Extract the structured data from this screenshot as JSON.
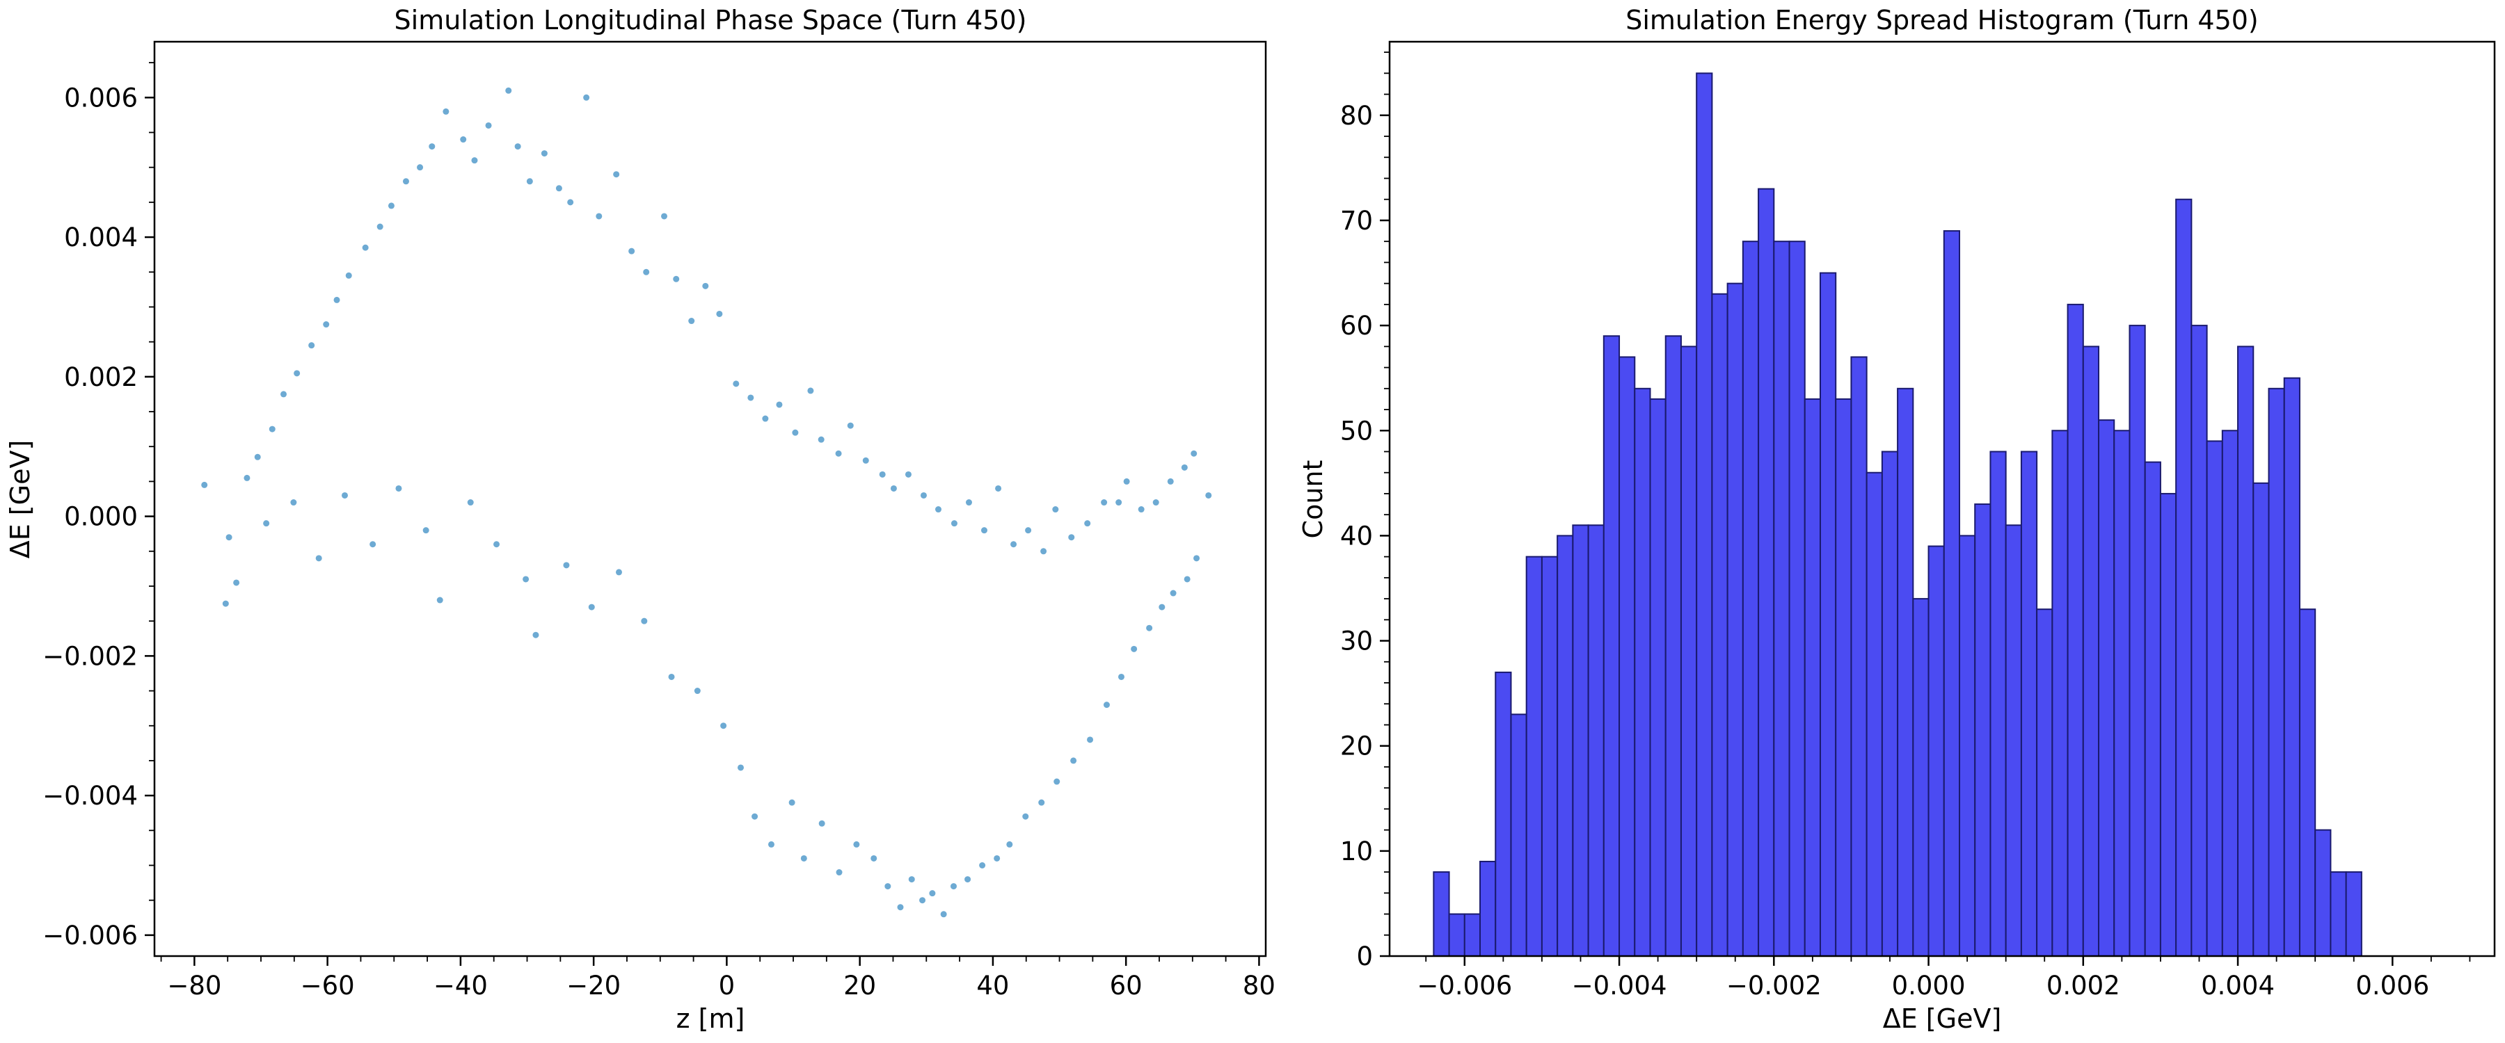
{
  "chart_data": [
    {
      "type": "scatter",
      "title": "Simulation Longitudinal Phase Space (Turn 450)",
      "xlabel": "z [m]",
      "ylabel": "ΔE [GeV]",
      "xlim": [
        -86,
        81
      ],
      "ylim": [
        -0.0063,
        0.0068
      ],
      "xticks": [
        -80,
        -60,
        -40,
        -20,
        0,
        20,
        40,
        60,
        80
      ],
      "xtick_labels": [
        "−80",
        "−60",
        "−40",
        "−20",
        "0",
        "20",
        "40",
        "60",
        "80"
      ],
      "yticks": [
        -0.006,
        -0.004,
        -0.002,
        0.0,
        0.002,
        0.004,
        0.006
      ],
      "ytick_labels": [
        "−0.006",
        "−0.004",
        "−0.002",
        "0.000",
        "0.002",
        "0.004",
        "0.006"
      ],
      "marker_color": "#3c8dc4",
      "grid": false,
      "points": [
        [
          -78.5,
          0.00045
        ],
        [
          -75.3,
          -0.00125
        ],
        [
          -73.7,
          -0.00095
        ],
        [
          -72.1,
          0.00055
        ],
        [
          -70.5,
          0.00085
        ],
        [
          -68.3,
          0.00125
        ],
        [
          -66.6,
          0.00175
        ],
        [
          -64.6,
          0.00205
        ],
        [
          -62.4,
          0.00245
        ],
        [
          -60.2,
          0.00275
        ],
        [
          -58.6,
          0.0031
        ],
        [
          -56.8,
          0.00345
        ],
        [
          -54.3,
          0.00385
        ],
        [
          -52.1,
          0.00415
        ],
        [
          -50.4,
          0.00445
        ],
        [
          -48.2,
          0.0048
        ],
        [
          -46.1,
          0.005
        ],
        [
          -44.3,
          0.0053
        ],
        [
          -42.2,
          0.0058
        ],
        [
          -39.6,
          0.0054
        ],
        [
          -37.9,
          0.0051
        ],
        [
          -35.8,
          0.0056
        ],
        [
          -32.8,
          0.0061
        ],
        [
          -31.4,
          0.0053
        ],
        [
          -29.6,
          0.0048
        ],
        [
          -27.4,
          0.0052
        ],
        [
          -25.2,
          0.0047
        ],
        [
          -23.5,
          0.0045
        ],
        [
          -21.1,
          0.006
        ],
        [
          -19.2,
          0.0043
        ],
        [
          -16.6,
          0.0049
        ],
        [
          -14.3,
          0.0038
        ],
        [
          -12.1,
          0.0035
        ],
        [
          -9.4,
          0.0043
        ],
        [
          -7.6,
          0.0034
        ],
        [
          -5.3,
          0.0028
        ],
        [
          -3.2,
          0.0033
        ],
        [
          -1.1,
          0.0029
        ],
        [
          1.4,
          0.0019
        ],
        [
          3.6,
          0.0017
        ],
        [
          5.8,
          0.0014
        ],
        [
          7.9,
          0.0016
        ],
        [
          10.3,
          0.0012
        ],
        [
          12.6,
          0.0018
        ],
        [
          14.2,
          0.0011
        ],
        [
          16.8,
          0.0009
        ],
        [
          18.6,
          0.0013
        ],
        [
          20.9,
          0.0008
        ],
        [
          23.4,
          0.0006
        ],
        [
          25.1,
          0.0004
        ],
        [
          27.3,
          0.0006
        ],
        [
          29.6,
          0.0003
        ],
        [
          31.8,
          0.0001
        ],
        [
          34.2,
          -0.0001
        ],
        [
          36.4,
          0.0002
        ],
        [
          38.7,
          -0.0002
        ],
        [
          40.8,
          0.0004
        ],
        [
          43.1,
          -0.0004
        ],
        [
          45.3,
          -0.0002
        ],
        [
          47.6,
          -0.0005
        ],
        [
          49.4,
          0.0001
        ],
        [
          51.8,
          -0.0003
        ],
        [
          54.2,
          -0.0001
        ],
        [
          56.7,
          0.0002
        ],
        [
          58.9,
          0.0002
        ],
        [
          60.1,
          0.0005
        ],
        [
          62.3,
          0.0001
        ],
        [
          64.5,
          0.0002
        ],
        [
          66.7,
          0.0005
        ],
        [
          68.8,
          0.0007
        ],
        [
          70.2,
          0.0009
        ],
        [
          72.4,
          0.0003
        ],
        [
          -74.8,
          -0.0003
        ],
        [
          -69.2,
          -0.0001
        ],
        [
          -65.1,
          0.0002
        ],
        [
          -61.3,
          -0.0006
        ],
        [
          -57.4,
          0.0003
        ],
        [
          -53.2,
          -0.0004
        ],
        [
          -49.3,
          0.0004
        ],
        [
          -45.2,
          -0.0002
        ],
        [
          -43.1,
          -0.0012
        ],
        [
          -38.5,
          0.0002
        ],
        [
          -34.6,
          -0.0004
        ],
        [
          -30.2,
          -0.0009
        ],
        [
          -28.7,
          -0.0017
        ],
        [
          -24.1,
          -0.0007
        ],
        [
          -20.3,
          -0.0013
        ],
        [
          -16.2,
          -0.0008
        ],
        [
          -12.4,
          -0.0015
        ],
        [
          -8.3,
          -0.0023
        ],
        [
          -4.4,
          -0.0025
        ],
        [
          -0.5,
          -0.003
        ],
        [
          2.1,
          -0.0036
        ],
        [
          4.2,
          -0.0043
        ],
        [
          6.7,
          -0.0047
        ],
        [
          9.8,
          -0.0041
        ],
        [
          11.6,
          -0.0049
        ],
        [
          14.3,
          -0.0044
        ],
        [
          16.9,
          -0.0051
        ],
        [
          19.5,
          -0.0047
        ],
        [
          22.1,
          -0.0049
        ],
        [
          24.2,
          -0.0053
        ],
        [
          26.1,
          -0.0056
        ],
        [
          27.8,
          -0.0052
        ],
        [
          29.4,
          -0.0055
        ],
        [
          30.9,
          -0.0054
        ],
        [
          32.6,
          -0.0057
        ],
        [
          34.1,
          -0.0053
        ],
        [
          36.2,
          -0.0052
        ],
        [
          38.4,
          -0.005
        ],
        [
          40.6,
          -0.0049
        ],
        [
          42.5,
          -0.0047
        ],
        [
          44.9,
          -0.0043
        ],
        [
          47.3,
          -0.0041
        ],
        [
          49.6,
          -0.0038
        ],
        [
          52.1,
          -0.0035
        ],
        [
          54.6,
          -0.0032
        ],
        [
          57.1,
          -0.0027
        ],
        [
          59.3,
          -0.0023
        ],
        [
          61.2,
          -0.0019
        ],
        [
          63.5,
          -0.0016
        ],
        [
          65.4,
          -0.0013
        ],
        [
          67.1,
          -0.0011
        ],
        [
          69.2,
          -0.0009
        ],
        [
          70.6,
          -0.0006
        ]
      ]
    },
    {
      "type": "bar",
      "title": "Simulation Energy Spread Histogram (Turn 450)",
      "xlabel": "ΔE [GeV]",
      "ylabel": "Count",
      "xlim": [
        -0.00697,
        0.00732
      ],
      "ylim": [
        0,
        87
      ],
      "xticks": [
        -0.006,
        -0.004,
        -0.002,
        0.0,
        0.002,
        0.004,
        0.006
      ],
      "xtick_labels": [
        "−0.006",
        "−0.004",
        "−0.002",
        "0.000",
        "0.002",
        "0.004",
        "0.006"
      ],
      "yticks": [
        0,
        10,
        20,
        30,
        40,
        50,
        60,
        70,
        80
      ],
      "ytick_labels": [
        "0",
        "10",
        "20",
        "30",
        "40",
        "50",
        "60",
        "70",
        "80"
      ],
      "bar_color": "#4b4bf2",
      "edge_color": "#1a1a6e",
      "grid": false,
      "bin_start": -0.0064,
      "bin_width": 0.0002,
      "values": [
        8,
        4,
        4,
        9,
        27,
        23,
        38,
        38,
        40,
        41,
        41,
        59,
        57,
        54,
        53,
        59,
        58,
        84,
        63,
        64,
        68,
        73,
        68,
        68,
        53,
        65,
        53,
        57,
        46,
        48,
        54,
        34,
        39,
        69,
        40,
        43,
        48,
        41,
        48,
        33,
        50,
        62,
        58,
        51,
        50,
        60,
        47,
        44,
        72,
        60,
        49,
        50,
        58,
        45,
        54,
        55,
        33,
        12,
        8,
        8
      ]
    }
  ]
}
